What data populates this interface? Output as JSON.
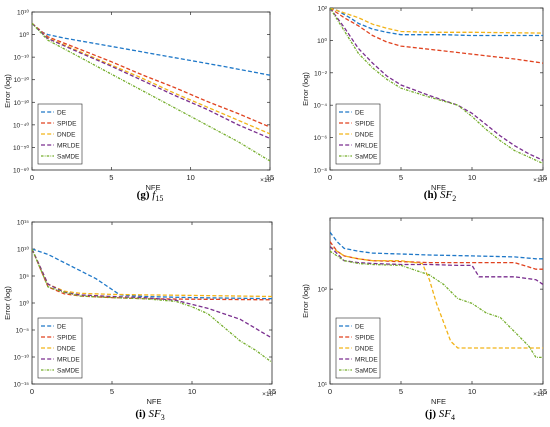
{
  "colors": {
    "DE": "#1f78c8",
    "SPIDE": "#e0421f",
    "DNDE": "#f2b318",
    "MRLDE": "#7a2f8f",
    "SaMDE": "#74ad2b"
  },
  "chart_data": [
    {
      "type": "line",
      "caption_letter": "(g)",
      "caption_func": "f15",
      "xlabel": "NFE",
      "ylabel": "Error (log)",
      "x_multiplier": "×10⁴",
      "yscale": "log",
      "xlim": [
        0,
        15
      ],
      "ylim_exp": [
        -60,
        10
      ],
      "xticks": [
        0,
        5,
        10,
        15
      ],
      "yticks_exp": [
        10,
        0,
        -10,
        -20,
        -30,
        -40,
        -50,
        -60
      ],
      "ytick_labels": [
        "10¹⁰",
        "10⁰",
        "10⁻¹⁰",
        "10⁻²⁰",
        "10⁻³⁰",
        "10⁻⁴⁰",
        "10⁻⁵⁰",
        "10⁻⁶⁰"
      ],
      "legend_position": "lower-left",
      "series": [
        {
          "name": "DE",
          "x": [
            0,
            0.5,
            1,
            2,
            4,
            6,
            8,
            10,
            12,
            15
          ],
          "log10": [
            5,
            1.5,
            0,
            -1.5,
            -4,
            -6.5,
            -9,
            -11.5,
            -14,
            -18
          ]
        },
        {
          "name": "SPIDE",
          "x": [
            0,
            1,
            3,
            5,
            7,
            9,
            11,
            13,
            15
          ],
          "log10": [
            5,
            -1,
            -6.5,
            -12,
            -18,
            -23.5,
            -29.5,
            -35,
            -41
          ]
        },
        {
          "name": "DNDE",
          "x": [
            0,
            1,
            3,
            5,
            7,
            9,
            11,
            13,
            15
          ],
          "log10": [
            5,
            -1.5,
            -7.5,
            -13.5,
            -19.5,
            -26,
            -32,
            -38,
            -44
          ]
        },
        {
          "name": "MRLDE",
          "x": [
            0,
            1,
            3,
            5,
            7,
            9,
            11,
            13,
            15
          ],
          "log10": [
            5,
            -1.8,
            -8,
            -14,
            -20.5,
            -27,
            -33,
            -40,
            -46
          ]
        },
        {
          "name": "SaMDE",
          "x": [
            0,
            1,
            3,
            5,
            7,
            9,
            11,
            13,
            15
          ],
          "log10": [
            5,
            -2.5,
            -10,
            -17.5,
            -25,
            -32.5,
            -40,
            -47.5,
            -56
          ]
        }
      ]
    },
    {
      "type": "line",
      "caption_letter": "(h)",
      "caption_func": "SF2",
      "xlabel": "NFE",
      "ylabel": "Error (log)",
      "x_multiplier": "×10⁴",
      "yscale": "log",
      "xlim": [
        0,
        15
      ],
      "ylim_exp": [
        -8,
        2
      ],
      "xticks": [
        0,
        5,
        10,
        15
      ],
      "yticks_exp": [
        2,
        0,
        -2,
        -4,
        -6,
        -8
      ],
      "ytick_labels": [
        "10²",
        "10⁰",
        "10⁻²",
        "10⁻⁴",
        "10⁻⁶",
        "10⁻⁸"
      ],
      "legend_position": "lower-left",
      "series": [
        {
          "name": "DE",
          "x": [
            0,
            0.5,
            1,
            1.5,
            2,
            3,
            4,
            5,
            8,
            10,
            12,
            15
          ],
          "log10": [
            2,
            1.85,
            1.6,
            1.35,
            1.05,
            0.7,
            0.5,
            0.35,
            0.35,
            0.3,
            0.3,
            0.3
          ]
        },
        {
          "name": "SPIDE",
          "x": [
            0,
            1,
            2,
            3,
            4,
            5,
            7,
            9,
            11,
            13,
            15
          ],
          "log10": [
            2,
            1.4,
            0.9,
            0.3,
            -0.1,
            -0.35,
            -0.55,
            -0.75,
            -0.95,
            -1.15,
            -1.4
          ]
        },
        {
          "name": "DNDE",
          "x": [
            0,
            1,
            2,
            3,
            4,
            5,
            7,
            10,
            15
          ],
          "log10": [
            2,
            1.7,
            1.4,
            1.0,
            0.75,
            0.55,
            0.5,
            0.5,
            0.45
          ]
        },
        {
          "name": "MRLDE",
          "x": [
            0,
            1,
            2,
            3,
            4,
            5,
            7,
            9,
            10,
            11,
            12,
            13,
            14,
            15
          ],
          "log10": [
            2,
            0.8,
            -0.5,
            -1.4,
            -2.2,
            -2.75,
            -3.4,
            -4.0,
            -4.5,
            -5.2,
            -5.9,
            -6.5,
            -7.0,
            -7.4
          ]
        },
        {
          "name": "SaMDE",
          "x": [
            0,
            1,
            2,
            3,
            4,
            5,
            7,
            9,
            10,
            11,
            12,
            13,
            14,
            15
          ],
          "log10": [
            2,
            0.6,
            -0.8,
            -1.7,
            -2.4,
            -2.95,
            -3.5,
            -4.0,
            -4.7,
            -5.5,
            -6.2,
            -6.8,
            -7.2,
            -7.6
          ]
        }
      ]
    },
    {
      "type": "line",
      "caption_letter": "(i)",
      "caption_func": "SF3",
      "xlabel": "NFE",
      "ylabel": "Error (log)",
      "x_multiplier": "×10⁴",
      "yscale": "log",
      "xlim": [
        0,
        15
      ],
      "ylim_exp": [
        -15,
        15
      ],
      "xticks": [
        0,
        5,
        10,
        15
      ],
      "yticks_exp": [
        15,
        10,
        5,
        0,
        -5,
        -10,
        -15
      ],
      "ytick_labels": [
        "10¹⁵",
        "10¹⁰",
        "10⁵",
        "10⁰",
        "10⁻⁵",
        "10⁻¹⁰",
        "10⁻¹⁵"
      ],
      "legend_position": "lower-left",
      "series": [
        {
          "name": "DE",
          "x": [
            0,
            1,
            2,
            3,
            4,
            5,
            5.5,
            7,
            10,
            15
          ],
          "log10": [
            10,
            9,
            7.5,
            6,
            4.5,
            2.5,
            1.5,
            1.2,
            1.0,
            0.8
          ]
        },
        {
          "name": "SPIDE",
          "x": [
            0,
            1,
            2,
            3,
            5,
            7,
            10,
            15
          ],
          "log10": [
            10,
            3,
            1.7,
            1.3,
            1.0,
            0.8,
            0.7,
            0.6
          ]
        },
        {
          "name": "DNDE",
          "x": [
            0,
            1,
            2,
            3,
            5,
            7,
            10,
            15
          ],
          "log10": [
            10,
            3.5,
            2.2,
            1.8,
            1.6,
            1.5,
            1.4,
            1.2
          ]
        },
        {
          "name": "MRLDE",
          "x": [
            0,
            1,
            2,
            3,
            5,
            7,
            9,
            11,
            13,
            15
          ],
          "log10": [
            10,
            3.5,
            2.0,
            1.5,
            1.2,
            1.0,
            0.5,
            -1.0,
            -3.0,
            -6.5
          ]
        },
        {
          "name": "SaMDE",
          "x": [
            0,
            1,
            2,
            3,
            5,
            7,
            9,
            10,
            11,
            12,
            13,
            14,
            15
          ],
          "log10": [
            10,
            3.0,
            2.0,
            1.3,
            1.0,
            0.8,
            0.3,
            -0.7,
            -2.0,
            -4.5,
            -7.0,
            -8.8,
            -11.0
          ]
        }
      ]
    },
    {
      "type": "line",
      "caption_letter": "(j)",
      "caption_func": "SF4",
      "xlabel": "NFE",
      "ylabel": "Error (log)",
      "x_multiplier": "×10⁴",
      "yscale": "log",
      "xlim": [
        0,
        15
      ],
      "ylim_exp": [
        1,
        2.75
      ],
      "xticks": [
        0,
        5,
        10,
        15
      ],
      "yticks_exp": [
        1,
        2
      ],
      "ytick_labels": [
        "10¹",
        "10²"
      ],
      "legend_position": "lower-left",
      "series": [
        {
          "name": "DE",
          "x": [
            0,
            0.5,
            1,
            2,
            3,
            5,
            7,
            10,
            13,
            14.5,
            15
          ],
          "log10": [
            2.6,
            2.5,
            2.43,
            2.4,
            2.38,
            2.37,
            2.36,
            2.35,
            2.34,
            2.32,
            2.32
          ]
        },
        {
          "name": "SPIDE",
          "x": [
            0,
            0.5,
            1,
            2,
            3,
            5,
            7,
            10,
            13,
            14.5,
            15
          ],
          "log10": [
            2.5,
            2.4,
            2.35,
            2.32,
            2.3,
            2.29,
            2.28,
            2.28,
            2.28,
            2.21,
            2.21
          ]
        },
        {
          "name": "DNDE",
          "x": [
            0,
            1,
            2,
            3,
            5,
            6.5,
            7,
            7.5,
            8,
            8.5,
            9,
            12,
            15
          ],
          "log10": [
            2.45,
            2.35,
            2.32,
            2.3,
            2.3,
            2.27,
            2.1,
            1.85,
            1.65,
            1.45,
            1.38,
            1.38,
            1.38
          ]
        },
        {
          "name": "MRLDE",
          "x": [
            0,
            1,
            2,
            3,
            5,
            7,
            9,
            10,
            10.5,
            13,
            14.5,
            15
          ],
          "log10": [
            2.45,
            2.3,
            2.28,
            2.27,
            2.26,
            2.26,
            2.25,
            2.25,
            2.13,
            2.13,
            2.1,
            2.05
          ]
        },
        {
          "name": "SaMDE",
          "x": [
            0,
            1,
            2,
            3,
            5,
            6,
            7,
            8,
            9,
            10,
            11,
            12,
            13,
            14,
            14.5,
            15
          ],
          "log10": [
            2.4,
            2.3,
            2.27,
            2.26,
            2.25,
            2.2,
            2.15,
            2.05,
            1.9,
            1.85,
            1.75,
            1.7,
            1.55,
            1.4,
            1.28,
            1.28
          ]
        }
      ]
    }
  ]
}
